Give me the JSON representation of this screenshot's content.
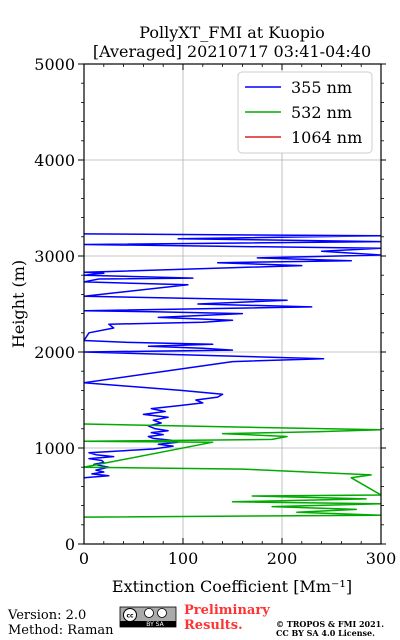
{
  "chart_data": {
    "type": "line",
    "title_line1": "PollyXT_FMI at Kuopio",
    "title_line2": "[Averaged] 20210717 03:41-04:40",
    "xlabel": "Extinction Coefficient [Mm⁻¹]",
    "ylabel": "Height (m)",
    "xlim": [
      0,
      300
    ],
    "ylim": [
      0,
      5000
    ],
    "x_ticks": [
      "0",
      "100",
      "200",
      "300"
    ],
    "y_ticks": [
      "0",
      "1000",
      "2000",
      "3000",
      "4000",
      "5000"
    ],
    "grid": true,
    "legend_position": "top-right",
    "series": [
      {
        "name": "355 nm",
        "color": "#0000ff",
        "points": [
          [
            0,
            690
          ],
          [
            25,
            710
          ],
          [
            8,
            730
          ],
          [
            20,
            750
          ],
          [
            12,
            770
          ],
          [
            25,
            800
          ],
          [
            10,
            830
          ],
          [
            20,
            850
          ],
          [
            18,
            870
          ],
          [
            5,
            890
          ],
          [
            30,
            910
          ],
          [
            12,
            930
          ],
          [
            5,
            950
          ],
          [
            70,
            990
          ],
          [
            90,
            1020
          ],
          [
            75,
            1040
          ],
          [
            95,
            1060
          ],
          [
            88,
            1080
          ],
          [
            70,
            1100
          ],
          [
            65,
            1120
          ],
          [
            80,
            1140
          ],
          [
            68,
            1160
          ],
          [
            85,
            1180
          ],
          [
            72,
            1200
          ],
          [
            65,
            1230
          ],
          [
            78,
            1260
          ],
          [
            70,
            1290
          ],
          [
            85,
            1320
          ],
          [
            60,
            1350
          ],
          [
            82,
            1380
          ],
          [
            68,
            1410
          ],
          [
            95,
            1440
          ],
          [
            120,
            1470
          ],
          [
            113,
            1500
          ],
          [
            135,
            1530
          ],
          [
            140,
            1560
          ],
          [
            98,
            1600
          ],
          [
            0,
            1680
          ],
          [
            150,
            1900
          ],
          [
            242,
            1930
          ],
          [
            0,
            2000
          ],
          [
            150,
            2020
          ],
          [
            120,
            2040
          ],
          [
            65,
            2060
          ],
          [
            130,
            2080
          ],
          [
            45,
            2100
          ],
          [
            0,
            2120
          ],
          [
            5,
            2200
          ],
          [
            30,
            2250
          ],
          [
            25,
            2290
          ],
          [
            120,
            2310
          ],
          [
            150,
            2330
          ],
          [
            75,
            2360
          ],
          [
            160,
            2400
          ],
          [
            70,
            2420
          ],
          [
            0,
            2430
          ],
          [
            230,
            2470
          ],
          [
            115,
            2500
          ],
          [
            205,
            2540
          ],
          [
            0,
            2580
          ],
          [
            105,
            2700
          ],
          [
            0,
            2730
          ],
          [
            15,
            2760
          ],
          [
            110,
            2770
          ],
          [
            0,
            2800
          ],
          [
            20,
            2820
          ],
          [
            0,
            2830
          ],
          [
            220,
            2900
          ],
          [
            135,
            2930
          ],
          [
            270,
            2950
          ],
          [
            175,
            2980
          ],
          [
            300,
            3010
          ],
          [
            240,
            3050
          ],
          [
            300,
            3080
          ],
          [
            0,
            3120
          ],
          [
            300,
            3150
          ],
          [
            95,
            3180
          ],
          [
            300,
            3210
          ],
          [
            0,
            3230
          ]
        ]
      },
      {
        "name": "532 nm",
        "color": "#00aa00",
        "points": [
          [
            0,
            280
          ],
          [
            300,
            300
          ],
          [
            215,
            330
          ],
          [
            275,
            360
          ],
          [
            190,
            390
          ],
          [
            300,
            420
          ],
          [
            150,
            440
          ],
          [
            285,
            470
          ],
          [
            170,
            500
          ],
          [
            300,
            510
          ],
          [
            270,
            690
          ],
          [
            290,
            720
          ],
          [
            160,
            780
          ],
          [
            0,
            800
          ],
          [
            130,
            1060
          ],
          [
            0,
            1070
          ],
          [
            190,
            1090
          ],
          [
            205,
            1120
          ],
          [
            140,
            1150
          ],
          [
            235,
            1170
          ],
          [
            300,
            1190
          ],
          [
            0,
            1250
          ]
        ]
      },
      {
        "name": "1064 nm",
        "color": "#dd2222",
        "points": []
      }
    ]
  },
  "footer": {
    "version": "Version: 2.0",
    "method": "Method: Raman",
    "preliminary_1": "Preliminary",
    "preliminary_2": "Results.",
    "copyright": "© TROPOS & FMI 2021.",
    "license": "CC BY SA 4.0 License.",
    "badge_text": "BY  SA"
  }
}
